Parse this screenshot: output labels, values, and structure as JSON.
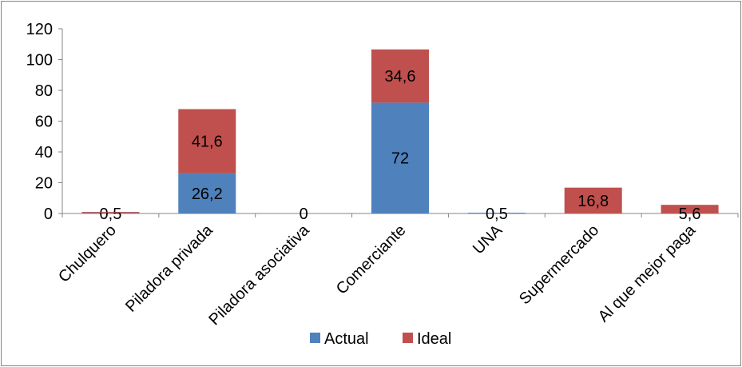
{
  "chart_data": {
    "type": "bar",
    "stacked": true,
    "categories": [
      "Chulquero",
      "Piladora privada",
      "Piladora asociativa",
      "Comerciante",
      "UNA",
      "Supermercado",
      "Al que mejor paga"
    ],
    "series": [
      {
        "name": "Actual",
        "color": "#4F81BD",
        "values": [
          0.5,
          26.2,
          0,
          72,
          0.5,
          0,
          0
        ],
        "labels": [
          "0,5",
          "26,2",
          "0",
          "72",
          "0,5",
          "",
          ""
        ]
      },
      {
        "name": "Ideal",
        "color": "#C0504D",
        "values": [
          0.5,
          41.6,
          0,
          34.6,
          0,
          16.8,
          5.6
        ],
        "labels": [
          "",
          "41,6",
          "",
          "34,6",
          "",
          "16,8",
          "5,6"
        ]
      }
    ],
    "ylim": [
      0,
      120
    ],
    "yticks": [
      "0",
      "20",
      "40",
      "60",
      "80",
      "100",
      "120"
    ],
    "grid": false,
    "legend": "bottom"
  }
}
